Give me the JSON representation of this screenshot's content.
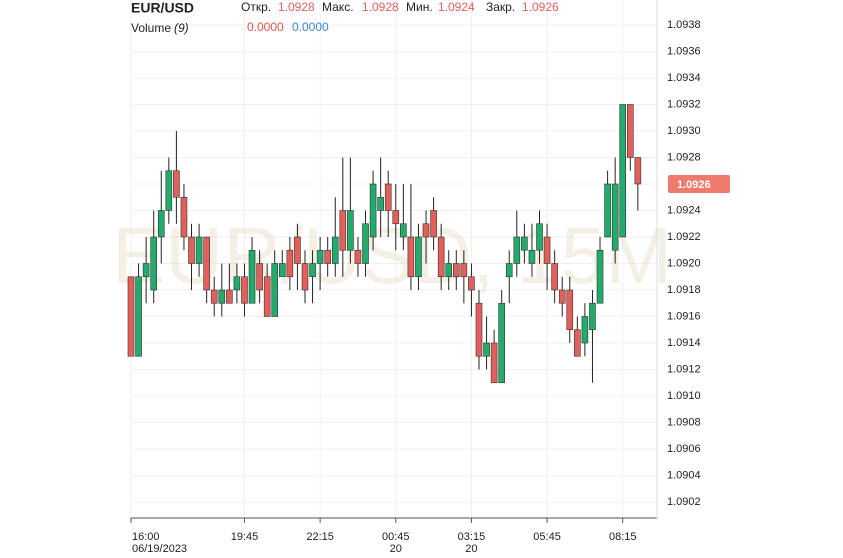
{
  "chart_data": {
    "type": "candlestick",
    "title": "EUR/USD",
    "watermark": "EUR/USD, 15M",
    "ohlc_labels": [
      "Откр.",
      "Макс.",
      "Мин.",
      "Закр."
    ],
    "volume_label": "Volume",
    "volume_period": "(9)",
    "volume_values": [
      {
        "value": 0,
        "label": "0.0000",
        "color": "#e0554d"
      },
      {
        "value": 0,
        "label": "0.0000",
        "color": "#3a86d6"
      }
    ],
    "up_color": "#22ab6a",
    "down_color": "#e3605a",
    "badge_color": "#ee7b6e",
    "x": [
      "16:00",
      "16:15",
      "16:30",
      "16:45",
      "17:00",
      "17:15",
      "17:30",
      "17:45",
      "18:00",
      "18:15",
      "18:30",
      "18:45",
      "19:00",
      "19:15",
      "19:30",
      "19:45",
      "20:00",
      "20:15",
      "20:30",
      "20:45",
      "21:00",
      "21:15",
      "21:30",
      "21:45",
      "22:00",
      "22:15",
      "22:30",
      "22:45",
      "23:00",
      "23:15",
      "23:30",
      "23:45",
      "00:00",
      "00:15",
      "00:30",
      "00:45",
      "01:00",
      "01:15",
      "01:30",
      "01:45",
      "02:00",
      "02:15",
      "02:30",
      "02:45",
      "03:00",
      "03:15",
      "03:30",
      "03:45",
      "04:00",
      "04:15",
      "04:30",
      "04:45",
      "05:00",
      "05:15",
      "05:30",
      "05:45",
      "06:00",
      "06:15",
      "06:30",
      "06:45",
      "07:00",
      "07:15",
      "07:30",
      "07:45",
      "08:00",
      "08:15",
      "08:30",
      "08:45"
    ],
    "open": [
      1.0919,
      1.0913,
      1.0919,
      1.0918,
      1.0922,
      1.0924,
      1.0927,
      1.0925,
      1.0922,
      1.092,
      1.0922,
      1.0918,
      1.0917,
      1.0918,
      1.0918,
      1.0919,
      1.0917,
      1.092,
      1.0919,
      1.0916,
      1.0919,
      1.0921,
      1.0922,
      1.092,
      1.0919,
      1.092,
      1.0921,
      1.092,
      1.0924,
      1.0921,
      1.0921,
      1.092,
      1.0922,
      1.0924,
      1.0926,
      1.0924,
      1.0922,
      1.0922,
      1.0919,
      1.0923,
      1.0924,
      1.0922,
      1.0919,
      1.092,
      1.092,
      1.0919,
      1.0917,
      1.0913,
      1.0914,
      1.0911,
      1.0919,
      1.092,
      1.0921,
      1.092,
      1.0921,
      1.0922,
      1.092,
      1.0918,
      1.0918,
      1.0915,
      1.0914,
      1.0915,
      1.0917,
      1.0922,
      1.0921,
      1.0922,
      1.0932,
      1.0928
    ],
    "high": [
      1.0919,
      1.092,
      1.0922,
      1.0924,
      1.0927,
      1.0928,
      1.093,
      1.0926,
      1.0923,
      1.0923,
      1.0922,
      1.0919,
      1.092,
      1.092,
      1.092,
      1.092,
      1.0922,
      1.0921,
      1.092,
      1.0921,
      1.0921,
      1.0922,
      1.0923,
      1.0921,
      1.0921,
      1.0922,
      1.0922,
      1.0925,
      1.0928,
      1.0928,
      1.0922,
      1.0924,
      1.0927,
      1.0928,
      1.0927,
      1.0926,
      1.0926,
      1.0926,
      1.0923,
      1.0924,
      1.0925,
      1.0923,
      1.0921,
      1.0921,
      1.0921,
      1.092,
      1.0918,
      1.0916,
      1.0915,
      1.0918,
      1.0921,
      1.0924,
      1.0923,
      1.0923,
      1.0924,
      1.0923,
      1.0921,
      1.0919,
      1.0919,
      1.0916,
      1.0917,
      1.0918,
      1.0922,
      1.0927,
      1.0928,
      1.0932,
      1.0932,
      1.0928
    ],
    "low": [
      1.0913,
      1.0913,
      1.0917,
      1.0917,
      1.092,
      1.0923,
      1.0923,
      1.0921,
      1.0918,
      1.0919,
      1.0917,
      1.0916,
      1.0916,
      1.0917,
      1.0917,
      1.0916,
      1.0917,
      1.0917,
      1.0916,
      1.0916,
      1.0919,
      1.0918,
      1.0918,
      1.0917,
      1.0917,
      1.0918,
      1.0919,
      1.0919,
      1.0919,
      1.092,
      1.0919,
      1.0919,
      1.0921,
      1.0922,
      1.0922,
      1.0921,
      1.0921,
      1.0918,
      1.0918,
      1.092,
      1.0921,
      1.0918,
      1.0918,
      1.0918,
      1.0917,
      1.0916,
      1.0912,
      1.0912,
      1.0911,
      1.0911,
      1.0917,
      1.0919,
      1.092,
      1.0919,
      1.092,
      1.0918,
      1.0917,
      1.0916,
      1.0914,
      1.0913,
      1.0913,
      1.0911,
      1.0917,
      1.0922,
      1.092,
      1.0922,
      1.0927,
      1.0924
    ],
    "close": [
      1.0913,
      1.0919,
      1.092,
      1.0922,
      1.0924,
      1.0927,
      1.0925,
      1.0922,
      1.092,
      1.0922,
      1.0918,
      1.0917,
      1.0918,
      1.0917,
      1.0919,
      1.0917,
      1.0921,
      1.0918,
      1.0916,
      1.092,
      1.092,
      1.0919,
      1.092,
      1.0918,
      1.092,
      1.0921,
      1.092,
      1.0922,
      1.0921,
      1.0924,
      1.092,
      1.0923,
      1.0926,
      1.0925,
      1.0924,
      1.0923,
      1.0923,
      1.0919,
      1.0922,
      1.0922,
      1.0922,
      1.0919,
      1.092,
      1.0919,
      1.0919,
      1.0918,
      1.0913,
      1.0914,
      1.0911,
      1.0917,
      1.092,
      1.0922,
      1.0922,
      1.0921,
      1.0923,
      1.092,
      1.0918,
      1.0917,
      1.0915,
      1.0913,
      1.0916,
      1.0917,
      1.0921,
      1.0926,
      1.0926,
      1.0932,
      1.0928,
      1.0926
    ],
    "ylim": [
      1.09,
      1.094
    ],
    "yticks": [
      1.0902,
      1.0904,
      1.0906,
      1.0908,
      {
        "value": 1.091,
        "label": "1.0910"
      },
      1.0912,
      1.0914,
      1.0916,
      1.0918,
      {
        "value": 1.092,
        "label": "1.0920"
      },
      1.0922,
      1.0924,
      1.0926,
      1.0928,
      {
        "value": 1.093,
        "label": "1.0930"
      },
      1.0932,
      1.0934,
      1.0936,
      1.0938
    ],
    "xticks": [
      {
        "time": "16:00",
        "date": "06/19/2023"
      },
      {
        "time": "19:45"
      },
      {
        "time": "22:15"
      },
      {
        "time": "00:45",
        "date": "20"
      },
      {
        "time": "03:15",
        "date": "20"
      },
      {
        "time": "05:45"
      },
      {
        "time": "08:15"
      }
    ],
    "grid": true
  }
}
